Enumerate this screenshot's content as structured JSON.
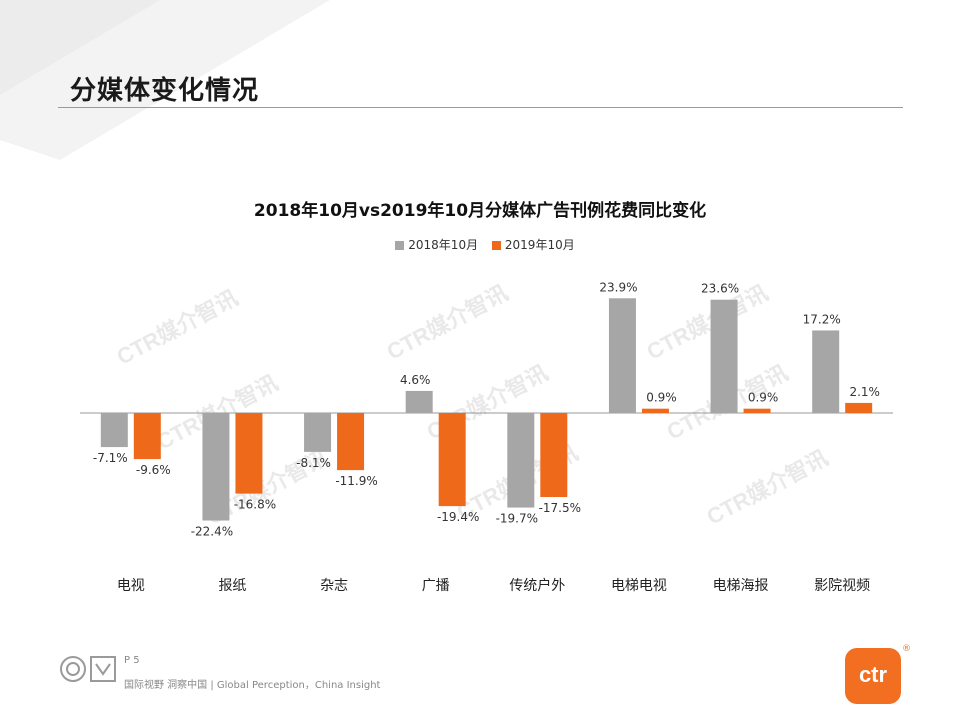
{
  "page": {
    "title": "分媒体变化情况",
    "page_number": "P 5",
    "tagline": "国际视野 洞察中国 | Global Perception，China Insight",
    "brand": "ctr",
    "brand_mark": "®",
    "watermark": "CTR媒介智讯"
  },
  "colors": {
    "series_2018": "#a6a6a6",
    "series_2019": "#ee6a1a",
    "axis": "#999999"
  },
  "chart_data": {
    "type": "bar",
    "title": "2018年10月vs2019年10月分媒体广告刊例花费同比变化",
    "categories": [
      "电视",
      "报纸",
      "杂志",
      "广播",
      "传统户外",
      "电梯电视",
      "电梯海报",
      "影院视频"
    ],
    "series": [
      {
        "name": "2018年10月",
        "values": [
          -7.1,
          -22.4,
          -8.1,
          4.6,
          -19.7,
          23.9,
          23.6,
          17.2
        ],
        "labels": [
          "-7.1%",
          "-22.4%",
          "-8.1%",
          "4.6%",
          "-19.7%",
          "23.9%",
          "23.6%",
          "17.2%"
        ]
      },
      {
        "name": "2019年10月",
        "values": [
          -9.6,
          -16.8,
          -11.9,
          -19.4,
          -17.5,
          0.9,
          0.9,
          2.1
        ],
        "labels": [
          "-9.6%",
          "-16.8%",
          "-11.9%",
          "-19.4%",
          "-17.5%",
          "0.9%",
          "0.9%",
          "2.1%"
        ]
      }
    ],
    "ylim": [
      -25,
      30
    ],
    "legend": "top-center",
    "grid": false
  }
}
